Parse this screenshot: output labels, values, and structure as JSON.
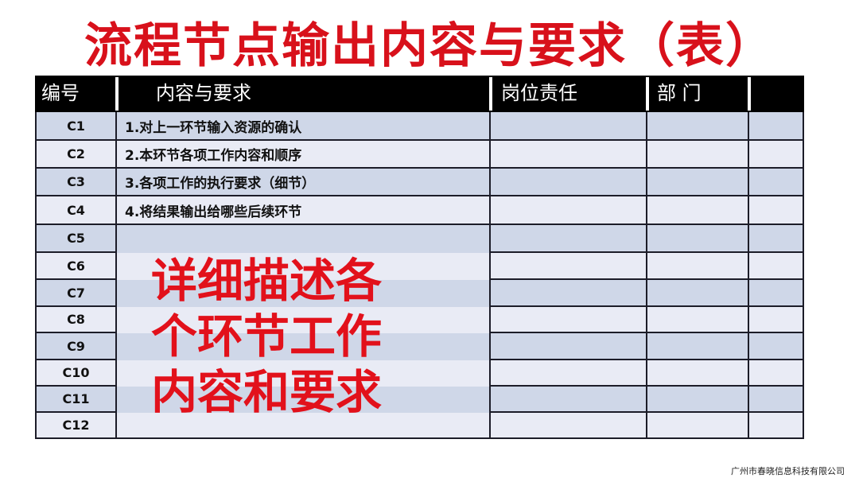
{
  "title": "流程节点输出内容与要求（表）",
  "table": {
    "headers": [
      "编号",
      "内容与要求",
      "岗位责任",
      "部 门",
      ""
    ],
    "rows": [
      {
        "code": "C1",
        "content": "1.对上一环节输入资源的确认"
      },
      {
        "code": "C2",
        "content": "2.本环节各项工作内容和顺序"
      },
      {
        "code": "C3",
        "content": "3.各项工作的执行要求（细节）"
      },
      {
        "code": "C4",
        "content": "4.将结果输出给哪些后续环节"
      },
      {
        "code": "C5",
        "content": ""
      },
      {
        "code": "C6",
        "content": ""
      },
      {
        "code": "C7",
        "content": ""
      },
      {
        "code": "C8",
        "content": ""
      },
      {
        "code": "C9",
        "content": ""
      },
      {
        "code": "C10",
        "content": ""
      },
      {
        "code": "C11",
        "content": ""
      },
      {
        "code": "C12",
        "content": ""
      }
    ]
  },
  "overlay_text": [
    "详细描述各",
    "个环节工作",
    "内容和要求"
  ],
  "footer": "广州市春晓信息科技有限公司",
  "colors": {
    "title": "#d8111b",
    "header_bg": "#000000",
    "row_dark": "#cfd7e8",
    "row_light": "#e9ebf5"
  }
}
